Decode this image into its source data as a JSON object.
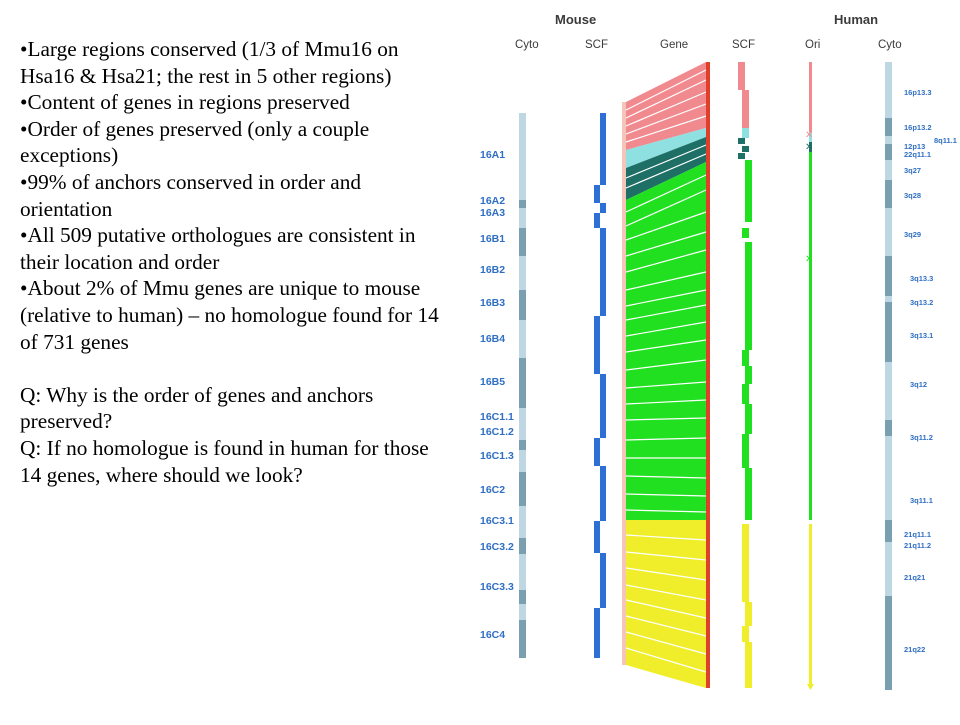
{
  "notes": {
    "items": [
      "Large regions conserved (1/3 of Mmu16 on Hsa16 & Hsa21; the rest in 5 other regions)",
      "Content of genes in regions preserved",
      "Order of genes preserved (only a couple exceptions)",
      "99% of anchors conserved in order and orientation",
      "All 509 putative orthologues are consistent in their location and order",
      "About 2% of Mmu genes are unique to mouse (relative to human) – no homologue found for 14 of 731 genes"
    ],
    "questions": [
      "Q: Why is the order of genes and anchors preserved?",
      "Q: If no homologue is found in human for those 14 genes, where should we look?"
    ]
  },
  "figure": {
    "species": {
      "mouse": "Mouse",
      "human": "Human"
    },
    "columns": {
      "mouse_cyto": "Cyto",
      "mouse_scf": "SCF",
      "gene": "Gene",
      "human_scf": "SCF",
      "ori": "Ori",
      "human_cyto": "Cyto"
    },
    "mouse_bands": [
      "16A1",
      "16A2",
      "16A3",
      "16B1",
      "16B2",
      "16B3",
      "16B4",
      "16B5",
      "16C1.1",
      "16C1.2",
      "16C1.3",
      "16C2",
      "16C3.1",
      "16C3.2",
      "16C3.3",
      "16C4"
    ],
    "human_bands": [
      "16p13.3",
      "16p13.2",
      "8q11.1",
      "12p13",
      "22q11.1",
      "3q27",
      "3q28",
      "3q29",
      "3q13.3",
      "3q13.2",
      "3q13.1",
      "3q12",
      "3q11.2",
      "3q11.1",
      "21q11.1",
      "21q11.2",
      "21q21",
      "21q22"
    ],
    "colors": {
      "accent_blue": "#2f6fc4",
      "cyto_light": "#bfd6e3",
      "cyto_dark": "#7a9fb0",
      "scf_blue": "#2e6fd6",
      "hsa16": "#f08a8f",
      "cyan": "#8fe0e0",
      "teal": "#1e6f66",
      "hsa3": "#20e020",
      "hsa21": "#f0ee2a",
      "red_tick": "#e0402a"
    }
  }
}
